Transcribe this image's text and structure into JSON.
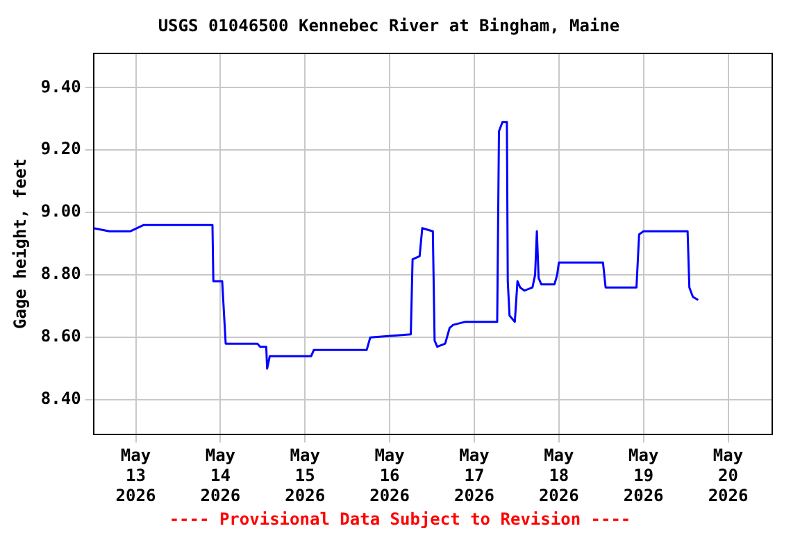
{
  "chart_data": {
    "type": "line",
    "title": "USGS 01046500 Kennebec River at Bingham, Maine",
    "ylabel": "Gage height, feet",
    "annotations": [
      "---- Provisional Data Subject to Revision ----"
    ],
    "xlim": [
      "2026-05-12T12:00",
      "2026-05-20T12:30"
    ],
    "xticks": [
      {
        "value": "2026-05-13",
        "label": "May 13 2026"
      },
      {
        "value": "2026-05-14",
        "label": "May 14 2026"
      },
      {
        "value": "2026-05-15",
        "label": "May 15 2026"
      },
      {
        "value": "2026-05-16",
        "label": "May 16 2026"
      },
      {
        "value": "2026-05-17",
        "label": "May 17 2026"
      },
      {
        "value": "2026-05-18",
        "label": "May 18 2026"
      },
      {
        "value": "2026-05-19",
        "label": "May 19 2026"
      },
      {
        "value": "2026-05-20",
        "label": "May 20 2026"
      }
    ],
    "ylim": [
      8.29,
      9.51
    ],
    "yticks": [
      {
        "value": 8.4,
        "label": "8.40"
      },
      {
        "value": 8.6,
        "label": "8.60"
      },
      {
        "value": 8.8,
        "label": "8.80"
      },
      {
        "value": 9.0,
        "label": "9.00"
      },
      {
        "value": 9.2,
        "label": "9.20"
      },
      {
        "value": 9.4,
        "label": "9.40"
      }
    ],
    "grid": true,
    "legend": false,
    "marker": "none",
    "line_style": "solid",
    "series": [
      {
        "color": "#0000ff",
        "x": [
          "2026-05-12T12:00",
          "2026-05-12T16:30",
          "2026-05-12T22:30",
          "2026-05-13T02:15",
          "2026-05-13T20:30",
          "2026-05-13T21:45",
          "2026-05-13T22:00",
          "2026-05-14T00:30",
          "2026-05-14T01:30",
          "2026-05-14T10:30",
          "2026-05-14T11:15",
          "2026-05-14T13:00",
          "2026-05-14T13:15",
          "2026-05-14T14:00",
          "2026-05-15T01:45",
          "2026-05-15T02:30",
          "2026-05-15T17:30",
          "2026-05-15T18:30",
          "2026-05-16T06:00",
          "2026-05-16T06:30",
          "2026-05-16T08:30",
          "2026-05-16T09:15",
          "2026-05-16T12:15",
          "2026-05-16T12:45",
          "2026-05-16T13:30",
          "2026-05-16T15:45",
          "2026-05-16T17:00",
          "2026-05-16T18:00",
          "2026-05-16T21:30",
          "2026-05-17T06:30",
          "2026-05-17T07:00",
          "2026-05-17T08:00",
          "2026-05-17T09:15",
          "2026-05-17T09:30",
          "2026-05-17T10:00",
          "2026-05-17T11:30",
          "2026-05-17T12:15",
          "2026-05-17T13:00",
          "2026-05-17T14:15",
          "2026-05-17T16:30",
          "2026-05-17T17:15",
          "2026-05-17T17:45",
          "2026-05-17T18:15",
          "2026-05-17T19:00",
          "2026-05-17T22:45",
          "2026-05-17T23:30",
          "2026-05-18T00:00",
          "2026-05-18T12:30",
          "2026-05-18T13:15",
          "2026-05-18T22:00",
          "2026-05-18T22:45",
          "2026-05-19T00:00",
          "2026-05-19T12:30",
          "2026-05-19T13:00",
          "2026-05-19T14:00",
          "2026-05-19T15:30"
        ],
        "values": [
          8.95,
          8.94,
          8.94,
          8.96,
          8.96,
          8.96,
          8.78,
          8.78,
          8.58,
          8.58,
          8.57,
          8.57,
          8.5,
          8.54,
          8.54,
          8.56,
          8.56,
          8.6,
          8.61,
          8.85,
          8.86,
          8.95,
          8.94,
          8.59,
          8.57,
          8.58,
          8.63,
          8.64,
          8.65,
          8.65,
          9.26,
          9.29,
          9.29,
          8.78,
          8.67,
          8.65,
          8.78,
          8.76,
          8.75,
          8.76,
          8.8,
          8.94,
          8.79,
          8.77,
          8.77,
          8.8,
          8.84,
          8.84,
          8.76,
          8.76,
          8.93,
          8.94,
          8.94,
          8.76,
          8.73,
          8.72
        ]
      }
    ]
  }
}
